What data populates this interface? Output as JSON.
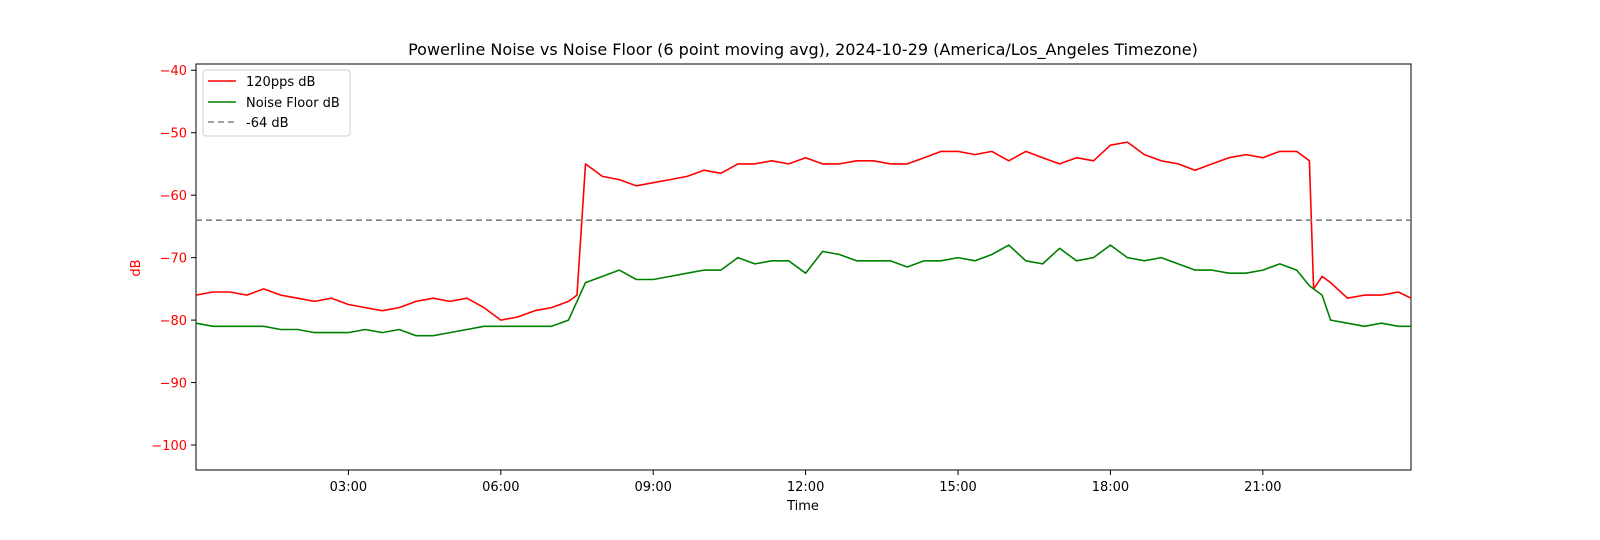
{
  "chart_data": {
    "type": "line",
    "title": "Powerline Noise vs Noise Floor (6 point moving avg), 2024-10-29 (America/Los_Angeles Timezone)",
    "xlabel": "Time",
    "ylabel": "dB",
    "xlim": [
      "00:00",
      "23:55"
    ],
    "ylim": [
      -104,
      -39
    ],
    "x_ticks": [
      "03:00",
      "06:00",
      "09:00",
      "12:00",
      "15:00",
      "18:00",
      "21:00"
    ],
    "y_ticks": [
      -40,
      -50,
      -60,
      -70,
      -80,
      -90,
      -100
    ],
    "y_tick_labels": [
      "−40",
      "−50",
      "−60",
      "−70",
      "−80",
      "−90",
      "−100"
    ],
    "grid": false,
    "legend_position": "upper-left",
    "colors": {
      "signal": "#ff0000",
      "noise": "#008000",
      "reference": "#808080",
      "ylabel_color": "#ff0000",
      "frame": "#000000"
    },
    "series": [
      {
        "name": "120pps dB",
        "color": "#ff0000",
        "x": [
          "00:00",
          "00:20",
          "00:40",
          "01:00",
          "01:20",
          "01:40",
          "02:00",
          "02:20",
          "02:40",
          "03:00",
          "03:20",
          "03:40",
          "04:00",
          "04:20",
          "04:40",
          "05:00",
          "05:20",
          "05:40",
          "06:00",
          "06:20",
          "06:40",
          "07:00",
          "07:20",
          "07:30",
          "07:40",
          "08:00",
          "08:20",
          "08:40",
          "09:00",
          "09:20",
          "09:40",
          "10:00",
          "10:20",
          "10:40",
          "11:00",
          "11:20",
          "11:40",
          "12:00",
          "12:20",
          "12:40",
          "13:00",
          "13:20",
          "13:40",
          "14:00",
          "14:20",
          "14:40",
          "15:00",
          "15:20",
          "15:40",
          "16:00",
          "16:20",
          "16:40",
          "17:00",
          "17:20",
          "17:40",
          "18:00",
          "18:20",
          "18:40",
          "19:00",
          "19:20",
          "19:40",
          "20:00",
          "20:20",
          "20:40",
          "21:00",
          "21:20",
          "21:40",
          "21:55",
          "22:00",
          "22:10",
          "22:20",
          "22:40",
          "23:00",
          "23:20",
          "23:40",
          "23:55"
        ],
        "values": [
          -76,
          -75.5,
          -75.5,
          -76,
          -75,
          -76,
          -76.5,
          -77,
          -76.5,
          -77.5,
          -78,
          -78.5,
          -78,
          -77,
          -76.5,
          -77,
          -76.5,
          -78,
          -80,
          -79.5,
          -78.5,
          -78,
          -77,
          -76,
          -55,
          -57,
          -57.5,
          -58.5,
          -58,
          -57.5,
          -57,
          -56,
          -56.5,
          -55,
          -55,
          -54.5,
          -55,
          -54,
          -55,
          -55,
          -54.5,
          -54.5,
          -55,
          -55,
          -54,
          -53,
          -53,
          -53.5,
          -53,
          -54.5,
          -53,
          -54,
          -55,
          -54,
          -54.5,
          -52,
          -51.5,
          -53.5,
          -54.5,
          -55,
          -56,
          -55,
          -54,
          -53.5,
          -54,
          -53,
          -53,
          -54.5,
          -75,
          -73,
          -74,
          -76.5,
          -76,
          -76,
          -75.5,
          -76.5
        ]
      },
      {
        "name": "Noise Floor dB",
        "color": "#008000",
        "x": [
          "00:00",
          "00:20",
          "00:40",
          "01:00",
          "01:20",
          "01:40",
          "02:00",
          "02:20",
          "02:40",
          "03:00",
          "03:20",
          "03:40",
          "04:00",
          "04:20",
          "04:40",
          "05:00",
          "05:20",
          "05:40",
          "06:00",
          "06:20",
          "06:40",
          "07:00",
          "07:20",
          "07:30",
          "07:40",
          "08:00",
          "08:20",
          "08:40",
          "09:00",
          "09:20",
          "09:40",
          "10:00",
          "10:20",
          "10:40",
          "11:00",
          "11:20",
          "11:40",
          "12:00",
          "12:20",
          "12:40",
          "13:00",
          "13:20",
          "13:40",
          "14:00",
          "14:20",
          "14:40",
          "15:00",
          "15:20",
          "15:40",
          "16:00",
          "16:20",
          "16:40",
          "17:00",
          "17:20",
          "17:40",
          "18:00",
          "18:20",
          "18:40",
          "19:00",
          "19:20",
          "19:40",
          "20:00",
          "20:20",
          "20:40",
          "21:00",
          "21:20",
          "21:40",
          "21:55",
          "22:00",
          "22:10",
          "22:20",
          "22:40",
          "23:00",
          "23:20",
          "23:40",
          "23:55"
        ],
        "values": [
          -80.5,
          -81,
          -81,
          -81,
          -81,
          -81.5,
          -81.5,
          -82,
          -82,
          -82,
          -81.5,
          -82,
          -81.5,
          -82.5,
          -82.5,
          -82,
          -81.5,
          -81,
          -81,
          -81,
          -81,
          -81,
          -80,
          -77,
          -74,
          -73,
          -72,
          -73.5,
          -73.5,
          -73,
          -72.5,
          -72,
          -72,
          -70,
          -71,
          -70.5,
          -70.5,
          -72.5,
          -69,
          -69.5,
          -70.5,
          -70.5,
          -70.5,
          -71.5,
          -70.5,
          -70.5,
          -70,
          -70.5,
          -69.5,
          -68,
          -70.5,
          -71,
          -68.5,
          -70.5,
          -70,
          -68,
          -70,
          -70.5,
          -70,
          -71,
          -72,
          -72,
          -72.5,
          -72.5,
          -72,
          -71,
          -72,
          -74.5,
          -75,
          -76,
          -80,
          -80.5,
          -81,
          -80.5,
          -81,
          -81
        ]
      },
      {
        "name": "-64 dB",
        "color": "#808080",
        "style": "dashed",
        "x": [
          "00:00",
          "23:55"
        ],
        "values": [
          -64,
          -64
        ]
      }
    ]
  }
}
